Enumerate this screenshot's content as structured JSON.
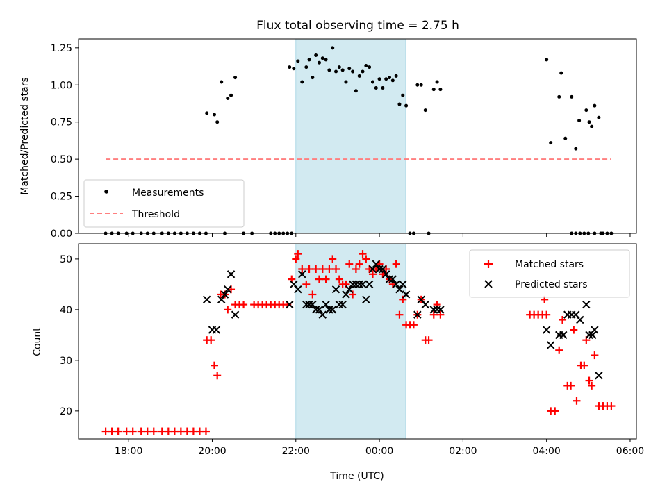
{
  "title": "Flux total observing time = 2.75 h",
  "colors": {
    "measure": "#000000",
    "threshold": "#ff7f7f",
    "matched": "#ff0000",
    "predicted": "#000000",
    "span": "#add8e6"
  },
  "chart_data": [
    {
      "type": "scatter",
      "name": "ratio",
      "ylabel": "Matched/Predicted stars",
      "xlim": [
        16.8,
        30.15
      ],
      "ylim": [
        0,
        1.31
      ],
      "yticks": [
        0.0,
        0.25,
        0.5,
        0.75,
        1.0,
        1.25
      ],
      "ytick_labels": [
        "0.00",
        "0.25",
        "0.50",
        "0.75",
        "1.00",
        "1.25"
      ],
      "highlight_span": [
        22.0,
        24.63
      ],
      "legend": {
        "position": "lower-left",
        "entries": [
          "Measurements",
          "Threshold"
        ]
      },
      "threshold": {
        "name": "Threshold",
        "y": 0.5,
        "x": [
          17.45,
          29.55
        ]
      },
      "series": [
        {
          "name": "Measurements",
          "points": [
            [
              17.45,
              0
            ],
            [
              17.6,
              0
            ],
            [
              17.75,
              0
            ],
            [
              17.95,
              0
            ],
            [
              18.1,
              0
            ],
            [
              18.3,
              0
            ],
            [
              18.45,
              0
            ],
            [
              18.6,
              0
            ],
            [
              18.8,
              0
            ],
            [
              18.95,
              0
            ],
            [
              19.1,
              0
            ],
            [
              19.25,
              0
            ],
            [
              19.4,
              0
            ],
            [
              19.55,
              0
            ],
            [
              19.7,
              0
            ],
            [
              19.85,
              0
            ],
            [
              20.3,
              0
            ],
            [
              20.75,
              0
            ],
            [
              20.95,
              0
            ],
            [
              21.4,
              0
            ],
            [
              21.5,
              0
            ],
            [
              21.6,
              0
            ],
            [
              21.7,
              0
            ],
            [
              21.8,
              0
            ],
            [
              21.9,
              0
            ],
            [
              19.87,
              0.81
            ],
            [
              20.05,
              0.8
            ],
            [
              20.12,
              0.75
            ],
            [
              20.22,
              1.02
            ],
            [
              20.37,
              0.91
            ],
            [
              20.45,
              0.93
            ],
            [
              20.55,
              1.05
            ],
            [
              21.85,
              1.12
            ],
            [
              21.95,
              1.11
            ],
            [
              22.05,
              1.16
            ],
            [
              22.15,
              1.02
            ],
            [
              22.25,
              1.12
            ],
            [
              22.32,
              1.17
            ],
            [
              22.4,
              1.05
            ],
            [
              22.48,
              1.2
            ],
            [
              22.56,
              1.15
            ],
            [
              22.64,
              1.18
            ],
            [
              22.72,
              1.17
            ],
            [
              22.8,
              1.1
            ],
            [
              22.88,
              1.25
            ],
            [
              22.96,
              1.09
            ],
            [
              23.04,
              1.12
            ],
            [
              23.12,
              1.1
            ],
            [
              23.2,
              1.02
            ],
            [
              23.28,
              1.11
            ],
            [
              23.36,
              1.09
            ],
            [
              23.44,
              0.96
            ],
            [
              23.52,
              1.06
            ],
            [
              23.6,
              1.09
            ],
            [
              23.68,
              1.13
            ],
            [
              23.76,
              1.12
            ],
            [
              23.84,
              1.02
            ],
            [
              23.92,
              0.98
            ],
            [
              24.0,
              1.04
            ],
            [
              24.08,
              0.98
            ],
            [
              24.16,
              1.04
            ],
            [
              24.24,
              1.05
            ],
            [
              24.32,
              1.03
            ],
            [
              24.4,
              1.06
            ],
            [
              24.48,
              0.87
            ],
            [
              24.56,
              0.93
            ],
            [
              24.64,
              0.86
            ],
            [
              24.73,
              0
            ],
            [
              24.82,
              0
            ],
            [
              24.91,
              1.0
            ],
            [
              25.0,
              1.0
            ],
            [
              25.1,
              0.83
            ],
            [
              25.18,
              0
            ],
            [
              25.3,
              0.97
            ],
            [
              25.38,
              1.02
            ],
            [
              25.46,
              0.97
            ],
            [
              28.6,
              0
            ],
            [
              28.7,
              0
            ],
            [
              28.8,
              0
            ],
            [
              28.9,
              0
            ],
            [
              29.0,
              0
            ],
            [
              29.15,
              0
            ],
            [
              29.3,
              0
            ],
            [
              29.45,
              0
            ],
            [
              29.55,
              0
            ],
            [
              28.0,
              1.17
            ],
            [
              28.1,
              0.61
            ],
            [
              28.3,
              0.92
            ],
            [
              28.35,
              1.08
            ],
            [
              28.45,
              0.64
            ],
            [
              28.6,
              0.92
            ],
            [
              28.7,
              0.57
            ],
            [
              28.78,
              0.76
            ],
            [
              28.95,
              0.83
            ],
            [
              29.02,
              0.75
            ],
            [
              29.08,
              0.72
            ],
            [
              29.15,
              0.86
            ],
            [
              29.25,
              0.78
            ],
            [
              29.35,
              0
            ]
          ]
        }
      ]
    },
    {
      "type": "scatter",
      "name": "counts",
      "xlabel": "Time (UTC)",
      "ylabel": "Count",
      "xlim": [
        16.8,
        30.15
      ],
      "ylim": [
        14.5,
        53
      ],
      "xticks": [
        18,
        20,
        22,
        24,
        26,
        28,
        30
      ],
      "xtick_labels": [
        "18:00",
        "20:00",
        "22:00",
        "00:00",
        "02:00",
        "04:00",
        "06:00"
      ],
      "yticks": [
        20,
        30,
        40,
        50
      ],
      "ytick_labels": [
        "20",
        "30",
        "40",
        "50"
      ],
      "highlight_span": [
        22.0,
        24.63
      ],
      "legend": {
        "position": "top-right",
        "entries": [
          "Matched stars",
          "Predicted stars"
        ]
      },
      "series": [
        {
          "name": "Matched stars",
          "marker": "plus",
          "points": [
            [
              17.45,
              16
            ],
            [
              17.6,
              16
            ],
            [
              17.75,
              16
            ],
            [
              17.95,
              16
            ],
            [
              18.1,
              16
            ],
            [
              18.3,
              16
            ],
            [
              18.45,
              16
            ],
            [
              18.6,
              16
            ],
            [
              18.8,
              16
            ],
            [
              18.95,
              16
            ],
            [
              19.1,
              16
            ],
            [
              19.25,
              16
            ],
            [
              19.4,
              16
            ],
            [
              19.55,
              16
            ],
            [
              19.7,
              16
            ],
            [
              19.85,
              16
            ],
            [
              19.87,
              34
            ],
            [
              19.97,
              34
            ],
            [
              20.05,
              29
            ],
            [
              20.12,
              27
            ],
            [
              20.2,
              43
            ],
            [
              20.3,
              43
            ],
            [
              20.37,
              40
            ],
            [
              20.45,
              44
            ],
            [
              20.55,
              41
            ],
            [
              20.65,
              41
            ],
            [
              20.75,
              41
            ],
            [
              21.0,
              41
            ],
            [
              21.1,
              41
            ],
            [
              21.2,
              41
            ],
            [
              21.3,
              41
            ],
            [
              21.4,
              41
            ],
            [
              21.5,
              41
            ],
            [
              21.6,
              41
            ],
            [
              21.7,
              41
            ],
            [
              21.8,
              41
            ],
            [
              21.9,
              46
            ],
            [
              22.0,
              50
            ],
            [
              22.05,
              51
            ],
            [
              22.15,
              48
            ],
            [
              22.25,
              45
            ],
            [
              22.32,
              48
            ],
            [
              22.4,
              43
            ],
            [
              22.48,
              48
            ],
            [
              22.56,
              46
            ],
            [
              22.64,
              48
            ],
            [
              22.72,
              46
            ],
            [
              22.8,
              48
            ],
            [
              22.88,
              50
            ],
            [
              22.96,
              48
            ],
            [
              23.04,
              46
            ],
            [
              23.12,
              45
            ],
            [
              23.2,
              45
            ],
            [
              23.28,
              49
            ],
            [
              23.36,
              43
            ],
            [
              23.44,
              48
            ],
            [
              23.52,
              49
            ],
            [
              23.6,
              51
            ],
            [
              23.68,
              50
            ],
            [
              23.76,
              48
            ],
            [
              23.84,
              47
            ],
            [
              23.92,
              48
            ],
            [
              24.0,
              49
            ],
            [
              24.08,
              47
            ],
            [
              24.16,
              48
            ],
            [
              24.24,
              46
            ],
            [
              24.32,
              45
            ],
            [
              24.4,
              49
            ],
            [
              24.48,
              39
            ],
            [
              24.56,
              42
            ],
            [
              24.64,
              37
            ],
            [
              24.73,
              37
            ],
            [
              24.82,
              37
            ],
            [
              24.91,
              39
            ],
            [
              25.0,
              42
            ],
            [
              25.1,
              34
            ],
            [
              25.18,
              34
            ],
            [
              25.3,
              39
            ],
            [
              25.38,
              41
            ],
            [
              25.46,
              39
            ],
            [
              27.6,
              39
            ],
            [
              27.7,
              39
            ],
            [
              27.8,
              39
            ],
            [
              27.9,
              39
            ],
            [
              28.0,
              39
            ],
            [
              27.95,
              42
            ],
            [
              28.1,
              20
            ],
            [
              28.2,
              20
            ],
            [
              28.3,
              32
            ],
            [
              28.38,
              38
            ],
            [
              28.5,
              25
            ],
            [
              28.58,
              25
            ],
            [
              28.65,
              36
            ],
            [
              28.72,
              22
            ],
            [
              28.82,
              29
            ],
            [
              28.9,
              29
            ],
            [
              28.95,
              34
            ],
            [
              29.02,
              26
            ],
            [
              29.08,
              25
            ],
            [
              29.15,
              31
            ],
            [
              29.25,
              21
            ],
            [
              29.35,
              21
            ],
            [
              29.45,
              21
            ],
            [
              29.55,
              21
            ]
          ]
        },
        {
          "name": "Predicted stars",
          "marker": "x",
          "points": [
            [
              19.87,
              42
            ],
            [
              20.0,
              36
            ],
            [
              20.1,
              36
            ],
            [
              20.22,
              42
            ],
            [
              20.3,
              43
            ],
            [
              20.37,
              44
            ],
            [
              20.45,
              47
            ],
            [
              20.55,
              39
            ],
            [
              21.85,
              41
            ],
            [
              21.95,
              45
            ],
            [
              22.05,
              44
            ],
            [
              22.15,
              47
            ],
            [
              22.25,
              41
            ],
            [
              22.32,
              41
            ],
            [
              22.4,
              41
            ],
            [
              22.48,
              40
            ],
            [
              22.56,
              40
            ],
            [
              22.64,
              39
            ],
            [
              22.72,
              41
            ],
            [
              22.8,
              40
            ],
            [
              22.88,
              40
            ],
            [
              22.96,
              44
            ],
            [
              23.04,
              41
            ],
            [
              23.12,
              41
            ],
            [
              23.2,
              43
            ],
            [
              23.28,
              44
            ],
            [
              23.36,
              45
            ],
            [
              23.44,
              45
            ],
            [
              23.52,
              45
            ],
            [
              23.6,
              45
            ],
            [
              23.68,
              42
            ],
            [
              23.76,
              45
            ],
            [
              23.84,
              48
            ],
            [
              23.92,
              49
            ],
            [
              24.0,
              48
            ],
            [
              24.08,
              48
            ],
            [
              24.16,
              47
            ],
            [
              24.24,
              46
            ],
            [
              24.32,
              46
            ],
            [
              24.4,
              45
            ],
            [
              24.48,
              44
            ],
            [
              24.56,
              45
            ],
            [
              24.64,
              43
            ],
            [
              24.91,
              39
            ],
            [
              25.0,
              42
            ],
            [
              25.1,
              41
            ],
            [
              25.3,
              40
            ],
            [
              25.38,
              40
            ],
            [
              25.46,
              40
            ],
            [
              28.0,
              36
            ],
            [
              28.1,
              33
            ],
            [
              28.3,
              35
            ],
            [
              28.4,
              35
            ],
            [
              28.5,
              39
            ],
            [
              28.6,
              39
            ],
            [
              28.7,
              39
            ],
            [
              28.8,
              38
            ],
            [
              28.95,
              41
            ],
            [
              29.02,
              35
            ],
            [
              29.1,
              35
            ],
            [
              29.15,
              36
            ],
            [
              29.25,
              27
            ]
          ]
        }
      ]
    }
  ]
}
